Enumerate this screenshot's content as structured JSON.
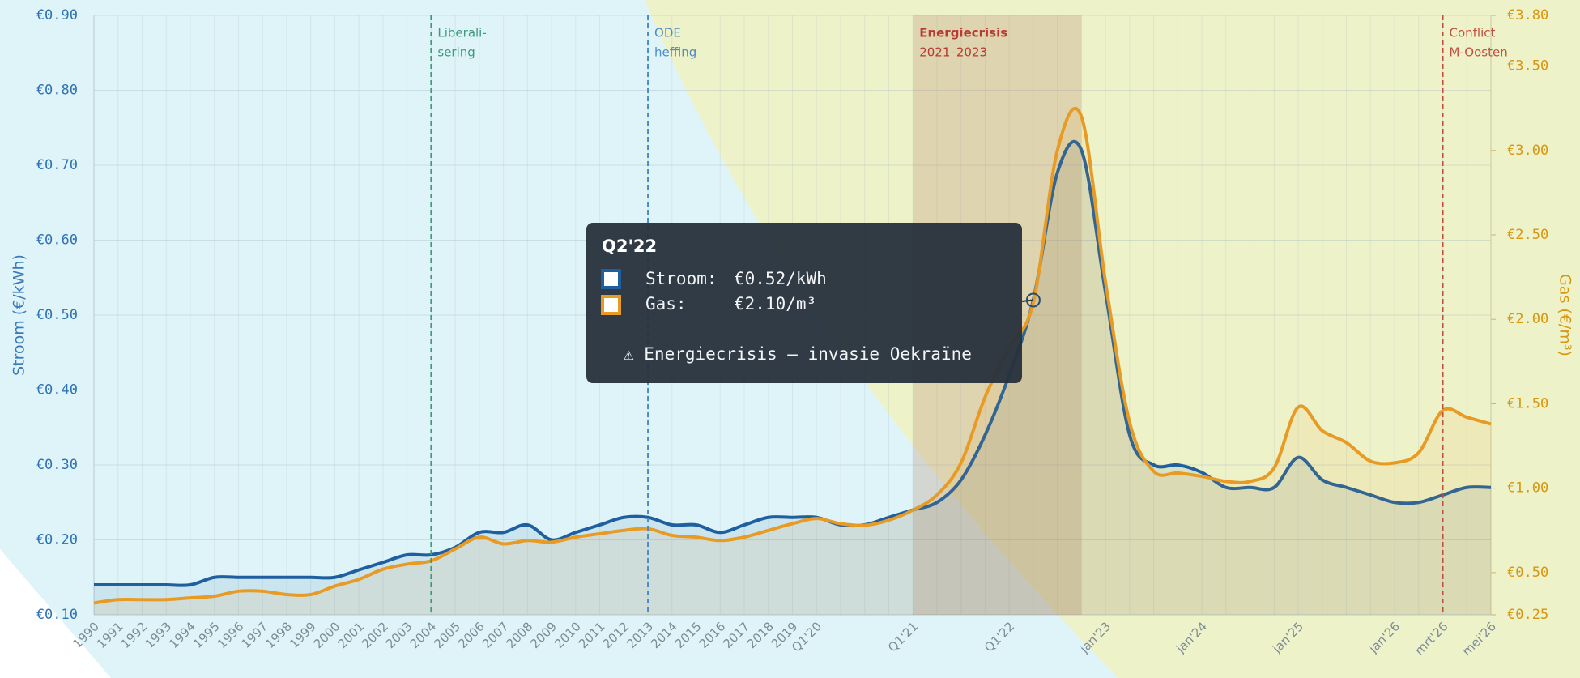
{
  "chart_data": {
    "type": "line",
    "categories": [
      "1990",
      "1991",
      "1992",
      "1993",
      "1994",
      "1995",
      "1996",
      "1997",
      "1998",
      "1999",
      "2000",
      "2001",
      "2002",
      "2003",
      "2004",
      "2005",
      "2006",
      "2007",
      "2008",
      "2009",
      "2010",
      "2011",
      "2012",
      "2013",
      "2014",
      "2015",
      "2016",
      "2017",
      "2018",
      "2019",
      "Q1'20",
      null,
      null,
      null,
      "Q1'21",
      null,
      null,
      null,
      "Q1'22",
      null,
      null,
      null,
      "jan'23",
      null,
      null,
      null,
      "jan'24",
      null,
      null,
      null,
      "jan'25",
      null,
      null,
      null,
      "jan'26",
      null,
      "mrt'26",
      null,
      "mei'26"
    ],
    "series": [
      {
        "color": "#1f5fa0",
        "values": [
          0.14,
          0.14,
          0.14,
          0.14,
          0.14,
          0.15,
          0.15,
          0.15,
          0.15,
          0.15,
          0.15,
          0.16,
          0.17,
          0.18,
          0.18,
          0.19,
          0.21,
          0.21,
          0.22,
          0.2,
          0.21,
          0.22,
          0.23,
          0.23,
          0.22,
          0.22,
          0.21,
          0.22,
          0.23,
          0.23,
          0.23,
          0.22,
          0.22,
          0.23,
          0.24,
          0.25,
          0.28,
          0.34,
          0.42,
          0.52,
          0.69,
          0.72,
          0.53,
          0.34,
          0.3,
          0.3,
          0.29,
          0.27,
          0.27,
          0.27,
          0.31,
          0.28,
          0.27,
          0.26,
          0.25,
          0.25,
          0.26,
          0.27,
          0.27
        ]
      },
      {
        "color": "#e89b24",
        "axis": "y2",
        "values": [
          0.32,
          0.34,
          0.34,
          0.34,
          0.35,
          0.36,
          0.39,
          0.39,
          0.37,
          0.37,
          0.42,
          0.46,
          0.52,
          0.55,
          0.57,
          0.64,
          0.71,
          0.67,
          0.69,
          0.68,
          0.71,
          0.73,
          0.75,
          0.76,
          0.72,
          0.71,
          0.69,
          0.71,
          0.75,
          0.79,
          0.82,
          0.79,
          0.78,
          0.81,
          0.87,
          0.96,
          1.15,
          1.54,
          1.83,
          2.1,
          3.0,
          3.2,
          2.22,
          1.39,
          1.1,
          1.09,
          1.07,
          1.04,
          1.04,
          1.12,
          1.48,
          1.34,
          1.27,
          1.16,
          1.15,
          1.21,
          1.46,
          1.42,
          1.38
        ]
      }
    ],
    "ylim": [
      0.1,
      0.9
    ],
    "yticks": [
      {
        "value": 0.1,
        "label": "€0.10"
      },
      {
        "value": 0.2,
        "label": "€0.20"
      },
      {
        "value": 0.3,
        "label": "€0.30"
      },
      {
        "value": 0.4,
        "label": "€0.40"
      },
      {
        "value": 0.5,
        "label": "€0.50"
      },
      {
        "value": 0.6,
        "label": "€0.60"
      },
      {
        "value": 0.7,
        "label": "€0.70"
      },
      {
        "value": 0.8,
        "label": "€0.80"
      },
      {
        "value": 0.9,
        "label": "€0.90"
      }
    ],
    "y2lim": [
      0.25,
      3.8
    ],
    "y2ticks": [
      {
        "value": 0.25,
        "label": "€0.25"
      },
      {
        "value": 0.5,
        "label": "€0.50"
      },
      {
        "value": 1,
        "label": "€1.00"
      },
      {
        "value": 1.5,
        "label": "€1.50"
      },
      {
        "value": 2,
        "label": "€2.00"
      },
      {
        "value": 2.5,
        "label": "€2.50"
      },
      {
        "value": 3,
        "label": "€3.00"
      },
      {
        "value": 3.5,
        "label": "€3.50"
      },
      {
        "value": 3.8,
        "label": "€3.80"
      }
    ],
    "ylabel": "Stroom (€/kWh)",
    "y2label": "Gas (€/m³)",
    "grid": true,
    "annotations": [
      {
        "lines": [
          "Liberali-",
          "sering"
        ],
        "color": "#3d9a7c"
      },
      {
        "lines": [
          "ODE",
          "heffing"
        ],
        "color": "#4a8cc8"
      },
      {
        "lines": [
          "Energiecrisis",
          "2021–2023"
        ],
        "color": "#b83a32"
      },
      {
        "lines": [
          "Conflict",
          "M-Oosten"
        ],
        "color": "#c0503e"
      }
    ],
    "tooltip": {
      "title": "Q2'22",
      "rows": [
        {
          "label": "Stroom:",
          "value": "€0.52/kWh"
        },
        {
          "label": "Gas:",
          "value": "€2.10/m³"
        }
      ],
      "note": "⚠ Energiecrisis — invasie Oekraïne"
    }
  }
}
